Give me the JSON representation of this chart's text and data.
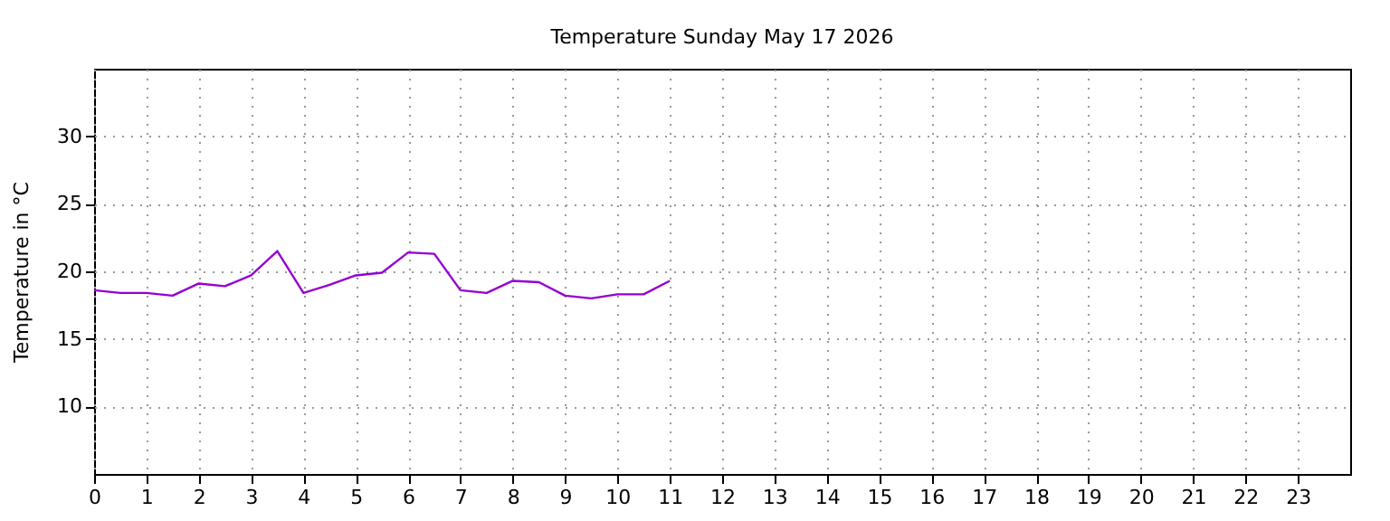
{
  "chart_data": {
    "type": "line",
    "title": "Temperature Sunday May 17 2026",
    "ylabel": "Temperature in °C",
    "x": [
      0,
      0.5,
      1,
      1.5,
      2,
      2.5,
      3,
      3.5,
      4,
      4.5,
      5,
      5.5,
      6,
      6.5,
      7,
      7.5,
      8,
      8.5,
      9,
      9.5,
      10,
      10.5,
      11
    ],
    "series": [
      {
        "color": "#9400d3",
        "values": [
          18.6,
          18.4,
          18.4,
          18.2,
          19.1,
          18.9,
          19.7,
          21.5,
          18.4,
          19.0,
          19.7,
          19.9,
          21.4,
          21.3,
          18.6,
          18.4,
          19.3,
          19.2,
          18.2,
          18.0,
          18.3,
          18.3,
          19.3
        ]
      }
    ],
    "xlim": [
      0,
      24
    ],
    "xticks": [
      0,
      1,
      2,
      3,
      4,
      5,
      6,
      7,
      8,
      9,
      10,
      11,
      12,
      13,
      14,
      15,
      16,
      17,
      18,
      19,
      20,
      21,
      22,
      23
    ],
    "ylim": [
      5,
      35
    ],
    "yticks": [
      10,
      15,
      20,
      25,
      30
    ],
    "grid": true,
    "marker": "none",
    "line_style": "solid"
  }
}
